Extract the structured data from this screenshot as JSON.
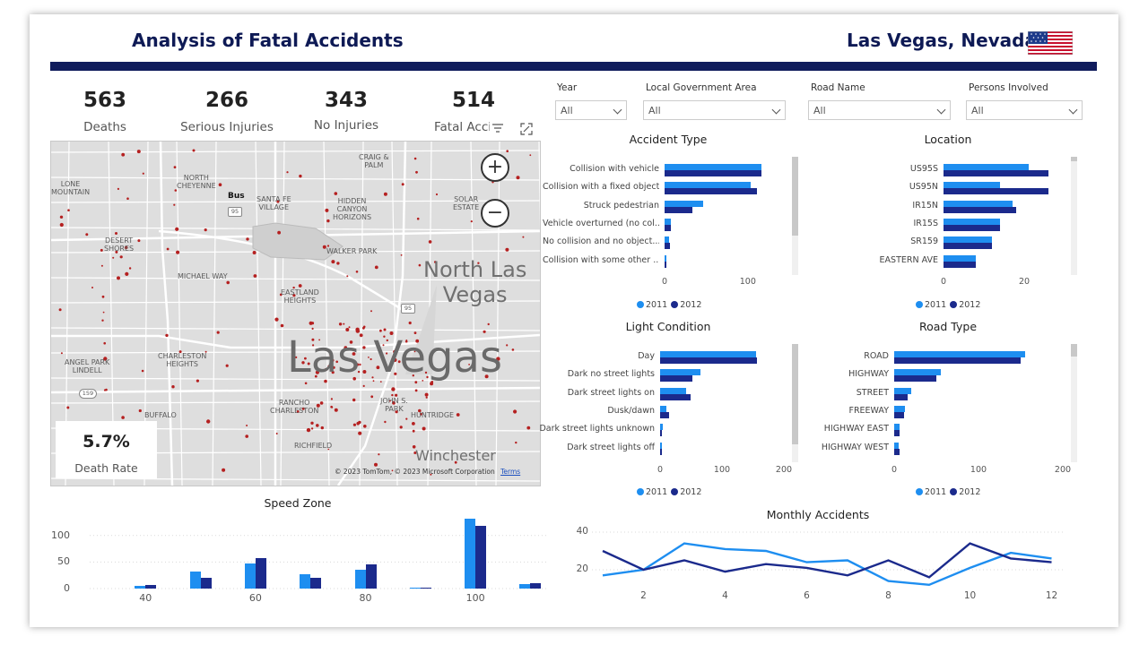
{
  "header": {
    "title": "Analysis of Fatal Accidents",
    "location": "Las Vegas, Nevada",
    "flag_icon": "us-flag-icon"
  },
  "kpis": [
    {
      "value": "563",
      "label": "Deaths"
    },
    {
      "value": "266",
      "label": "Serious Injuries"
    },
    {
      "value": "343",
      "label": "No Injuries"
    },
    {
      "value": "514",
      "label": "Fatal Acci"
    }
  ],
  "map": {
    "labels": {
      "lone_mountain": "LONE\nMOUNTAIN",
      "north_cheyenne": "NORTH\nCHEYENNE",
      "craig_palm": "CRAIG &\nPALM",
      "bus": "Bus",
      "santa_fe": "SANTA FE\nVILLAGE",
      "hidden_canyon": "HIDDEN\nCANYON\nHORIZONS",
      "solar_estate": "SOLAR\nESTATE",
      "desert_shores": "DESERT\nSHORES",
      "walker_park": "WALKER PARK",
      "michael_way": "MICHAEL WAY",
      "north_las_vegas": "North Las\nVegas",
      "eastland": "EASTLAND\nHEIGHTS",
      "angel_park": "ANGEL PARK\nLINDELL",
      "charleston_heights": "CHARLESTON\nHEIGHTS",
      "las_vegas": "Las Vegas",
      "buffalo": "BUFFALO",
      "rancho": "RANCHO\nCHARLESTON",
      "john_s_park": "JOHN S.\nPARK",
      "huntridge": "HUNTRIDGE",
      "richfield": "RICHFIELD",
      "winchester": "Winchester",
      "r95a": "95",
      "r95b": "95",
      "r159": "159",
      "copyright": "© 2023 TomTom, © 2023 Microsoft Corporation",
      "terms": "Terms"
    },
    "zoom_in": "+",
    "zoom_out": "−",
    "death_rate_value": "5.7%",
    "death_rate_label": "Death Rate"
  },
  "filters": [
    {
      "label": "Year",
      "value": "All"
    },
    {
      "label": "Local Government Area",
      "value": "All"
    },
    {
      "label": "Road Name",
      "value": "All"
    },
    {
      "label": "Persons Involved",
      "value": "All"
    }
  ],
  "colors": {
    "series_2011": "#1e8ef0",
    "series_2012": "#1b2a8c",
    "title_navy": "#0e1a55"
  },
  "legend": [
    "2011",
    "2012"
  ],
  "chart_data": [
    {
      "type": "bar",
      "orientation": "horizontal",
      "title": "Accident Type",
      "categories": [
        "Collision with vehicle",
        "Collision with a fixed object",
        "Struck pedestrian",
        "Vehicle overturned (no col...",
        "No collision and no object...",
        "Collision with some other ..."
      ],
      "series": [
        {
          "name": "2011",
          "values": [
            116,
            103,
            46,
            7,
            5,
            2
          ]
        },
        {
          "name": "2012",
          "values": [
            116,
            111,
            33,
            7,
            6,
            2
          ]
        }
      ],
      "xlim": [
        0,
        140
      ],
      "ticks": [
        0,
        100
      ]
    },
    {
      "type": "bar",
      "orientation": "horizontal",
      "title": "Location",
      "categories": [
        "US95S",
        "US95N",
        "IR15N",
        "IR15S",
        "SR159",
        "EASTERN AVE"
      ],
      "series": [
        {
          "name": "2011",
          "values": [
            21,
            14,
            17,
            14,
            12,
            8
          ]
        },
        {
          "name": "2012",
          "values": [
            26,
            26,
            18,
            14,
            12,
            8
          ]
        }
      ],
      "xlim": [
        0,
        30
      ],
      "ticks": [
        0,
        20
      ]
    },
    {
      "type": "bar",
      "orientation": "horizontal",
      "title": "Light Condition",
      "categories": [
        "Day",
        "Dark no street lights",
        "Dark street lights on",
        "Dusk/dawn",
        "Dark street lights unknown",
        "Dark street lights off"
      ],
      "series": [
        {
          "name": "2011",
          "values": [
            155,
            65,
            42,
            10,
            4,
            1
          ]
        },
        {
          "name": "2012",
          "values": [
            157,
            52,
            49,
            15,
            0,
            1
          ]
        }
      ],
      "xlim": [
        0,
        200
      ],
      "ticks": [
        0,
        100,
        200
      ]
    },
    {
      "type": "bar",
      "orientation": "horizontal",
      "title": "Road Type",
      "categories": [
        "ROAD",
        "HIGHWAY",
        "STREET",
        "FREEWAY",
        "HIGHWAY EAST",
        "HIGHWAY WEST"
      ],
      "series": [
        {
          "name": "2011",
          "values": [
            155,
            55,
            20,
            13,
            6,
            5
          ]
        },
        {
          "name": "2012",
          "values": [
            150,
            50,
            16,
            12,
            6,
            6
          ]
        }
      ],
      "xlim": [
        0,
        200
      ],
      "ticks": [
        0,
        100,
        200
      ]
    },
    {
      "type": "bar",
      "orientation": "vertical",
      "title": "Speed Zone",
      "categories": [
        "30",
        "40",
        "50",
        "60",
        "70",
        "80",
        "90",
        "100",
        "110"
      ],
      "tick_labels": [
        "",
        "40",
        "",
        "60",
        "",
        "80",
        "",
        "100",
        ""
      ],
      "series": [
        {
          "name": "2011",
          "values": [
            0,
            5,
            32,
            47,
            27,
            35,
            2,
            132,
            9
          ]
        },
        {
          "name": "2012",
          "values": [
            0,
            6,
            21,
            58,
            20,
            46,
            2,
            118,
            10
          ]
        }
      ],
      "ylim": [
        0,
        135
      ],
      "yticks": [
        0,
        50,
        100
      ]
    },
    {
      "type": "line",
      "title": "Monthly Accidents",
      "x": [
        1,
        2,
        3,
        4,
        5,
        6,
        7,
        8,
        9,
        10,
        11,
        12
      ],
      "xticks": [
        2,
        4,
        6,
        8,
        10,
        12
      ],
      "series": [
        {
          "name": "2011",
          "values": [
            17,
            20,
            34,
            31,
            30,
            24,
            25,
            14,
            12,
            21,
            29,
            26
          ]
        },
        {
          "name": "2012",
          "values": [
            30,
            20,
            25,
            19,
            23,
            21,
            17,
            25,
            16,
            34,
            26,
            24
          ]
        }
      ],
      "ylim": [
        8,
        44
      ],
      "yticks": [
        20,
        40
      ]
    }
  ]
}
